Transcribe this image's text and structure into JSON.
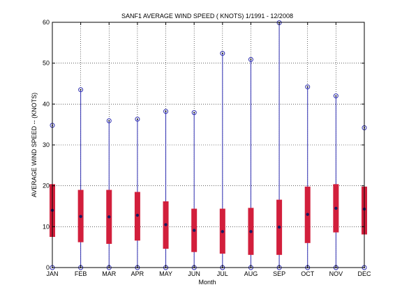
{
  "chart_data": {
    "type": "box",
    "title": "SANF1  AVERAGE WIND SPEED ( KNOTS) 1/1991 - 12/2008",
    "xlabel": "Month",
    "ylabel": "AVERAGE WIND SPEED -- (KNOTS)",
    "ylim": [
      0,
      60
    ],
    "yticks": [
      0,
      10,
      20,
      30,
      40,
      50,
      60
    ],
    "grid": true,
    "categories": [
      "JAN",
      "FEB",
      "MAR",
      "APR",
      "MAY",
      "JUN",
      "JUL",
      "AUG",
      "SEP",
      "OCT",
      "NOV",
      "DEC"
    ],
    "series": [
      {
        "min": [
          0,
          0,
          0,
          0,
          0,
          0,
          0,
          0,
          0,
          0,
          0,
          0
        ],
        "q1": [
          7.5,
          6.2,
          5.8,
          6.6,
          4.6,
          3.8,
          3.4,
          3.1,
          3.1,
          6.0,
          8.6,
          8.1
        ],
        "median": [
          14.0,
          12.5,
          12.4,
          12.8,
          10.5,
          9.1,
          8.8,
          8.8,
          9.9,
          13.0,
          14.5,
          14.3
        ],
        "q3": [
          20.4,
          19.0,
          19.0,
          18.5,
          16.2,
          14.4,
          14.4,
          14.6,
          16.6,
          19.8,
          20.4,
          19.8
        ],
        "max": [
          34.8,
          43.5,
          35.9,
          36.3,
          38.2,
          37.9,
          52.4,
          50.9,
          59.9,
          44.2,
          42.0,
          34.2
        ],
        "color": "#2c2cb0",
        "box_color": "#d21f3c"
      }
    ]
  }
}
